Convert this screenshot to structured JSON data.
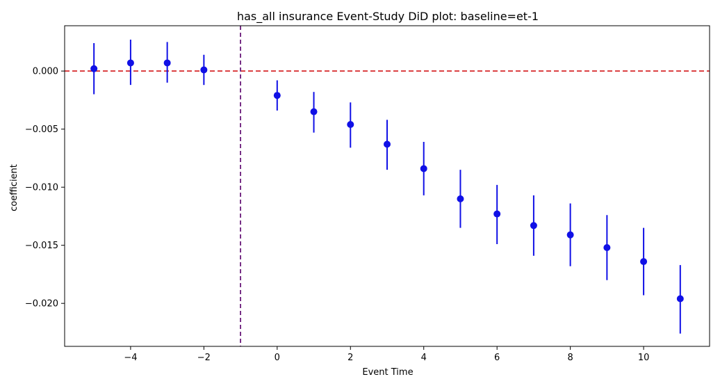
{
  "chart_data": {
    "type": "scatter",
    "title": "has_all insurance Event-Study DiD plot: baseline=et-1",
    "xlabel": "Event Time",
    "ylabel": "coefficient",
    "xlim": [
      -5.8,
      11.8
    ],
    "ylim": [
      -0.0237,
      0.0039
    ],
    "xticks": [
      -4,
      -2,
      0,
      2,
      4,
      6,
      8,
      10
    ],
    "xtick_labels": [
      "−4",
      "−2",
      "0",
      "2",
      "4",
      "6",
      "8",
      "10"
    ],
    "yticks": [
      0.0,
      -0.005,
      -0.01,
      -0.015,
      -0.02
    ],
    "ytick_labels": [
      "0.000",
      "−0.005",
      "−0.010",
      "−0.015",
      "−0.020"
    ],
    "grid": false,
    "reference_lines": {
      "horizontal_y": 0,
      "horizontal_color": "#d62728",
      "vertical_x": -1,
      "vertical_color": "#6a1b7a"
    },
    "series": [
      {
        "x": [
          -5,
          -4,
          -3,
          -2,
          0,
          1,
          2,
          3,
          4,
          5,
          6,
          7,
          8,
          9,
          10,
          11
        ],
        "y": [
          0.0002,
          0.0007,
          0.0007,
          0.0001,
          -0.0021,
          -0.0035,
          -0.0046,
          -0.0063,
          -0.0084,
          -0.011,
          -0.0123,
          -0.0133,
          -0.0141,
          -0.0152,
          -0.0164,
          -0.0196
        ],
        "ci_low": [
          -0.002,
          -0.0012,
          -0.001,
          -0.0012,
          -0.0034,
          -0.0053,
          -0.0066,
          -0.0085,
          -0.0107,
          -0.0135,
          -0.0149,
          -0.0159,
          -0.0168,
          -0.018,
          -0.0193,
          -0.0226
        ],
        "ci_high": [
          0.0024,
          0.0027,
          0.0025,
          0.0014,
          -0.0008,
          -0.0018,
          -0.0027,
          -0.0042,
          -0.0061,
          -0.0085,
          -0.0098,
          -0.0107,
          -0.0114,
          -0.0124,
          -0.0135,
          -0.0167
        ]
      }
    ],
    "colors": {
      "points": "#1010e6",
      "errorbars": "#1010e6",
      "zero_line": "#d62728",
      "baseline_line": "#6a1b7a"
    }
  }
}
